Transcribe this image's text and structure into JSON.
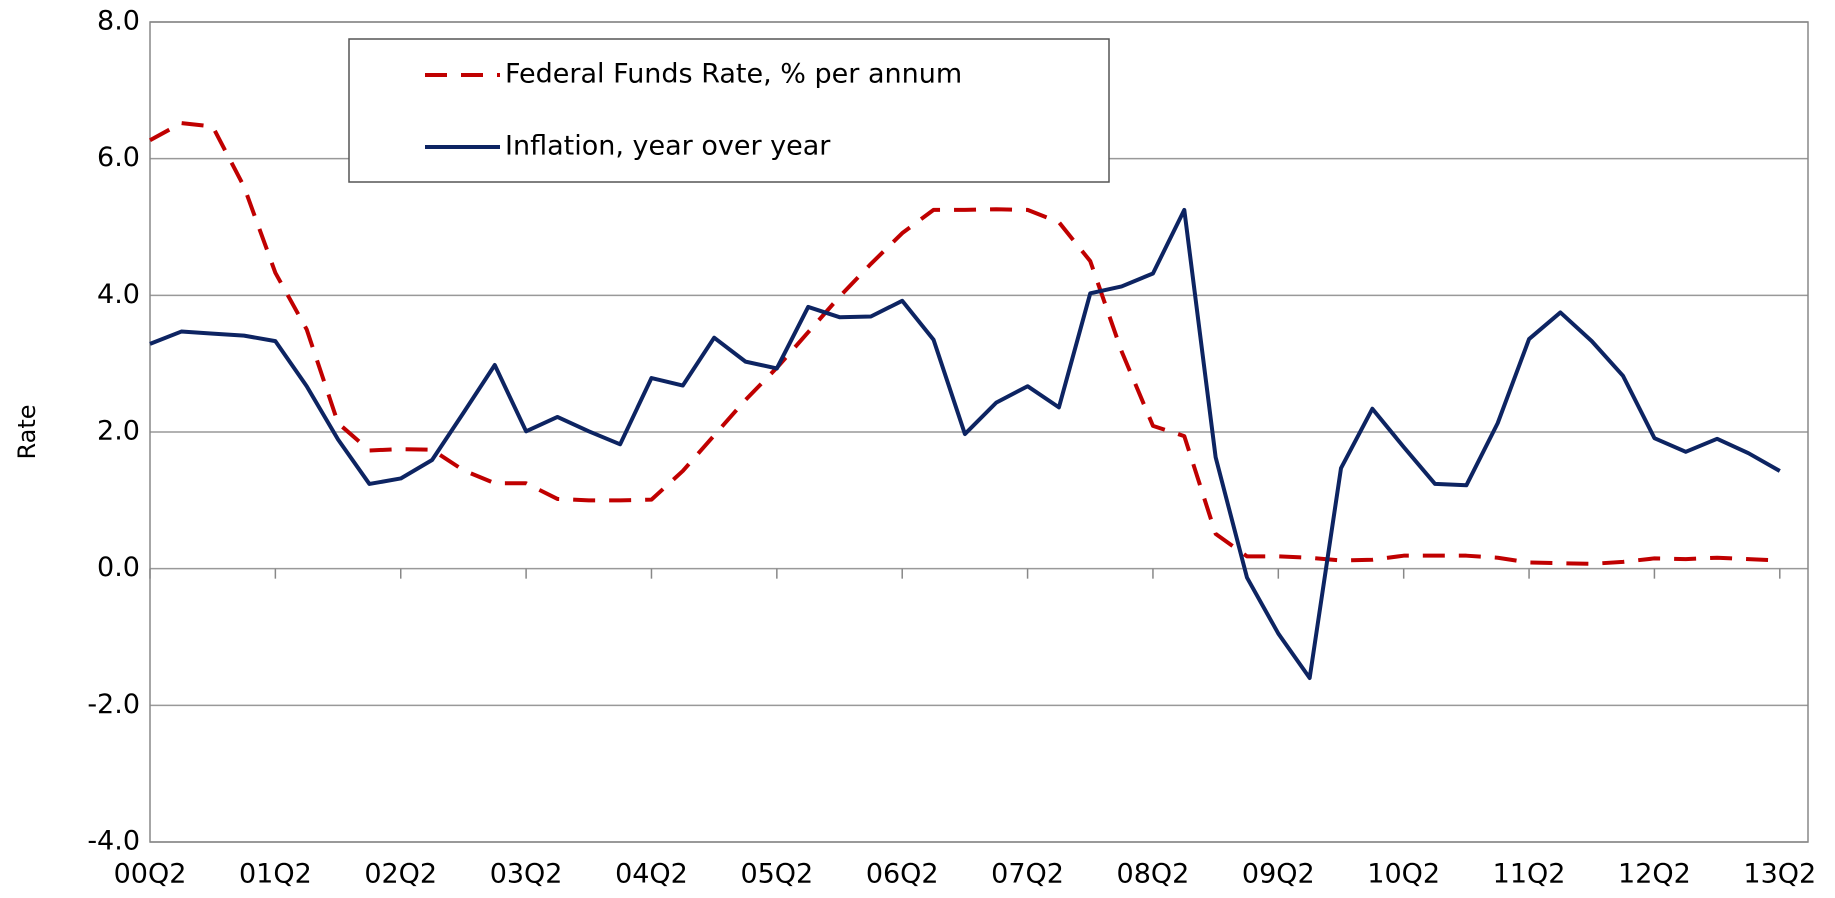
{
  "chart_data": {
    "type": "line",
    "y_label": "Rate",
    "categories": [
      "00Q2",
      null,
      null,
      null,
      "01Q2",
      null,
      null,
      null,
      "02Q2",
      null,
      null,
      null,
      "03Q2",
      null,
      null,
      null,
      "04Q2",
      null,
      null,
      null,
      "05Q2",
      null,
      null,
      null,
      "06Q2",
      null,
      null,
      null,
      "07Q2",
      null,
      null,
      null,
      "08Q2",
      null,
      null,
      null,
      "09Q2",
      null,
      null,
      null,
      "10Q2",
      null,
      null,
      null,
      "11Q2",
      null,
      null,
      null,
      "12Q2",
      null,
      null,
      null,
      "13Q2"
    ],
    "series": [
      {
        "name": "Federal Funds Rate, % per annum",
        "color": "#c00000",
        "dash": true,
        "values": [
          6.27,
          6.52,
          6.47,
          5.59,
          4.33,
          3.5,
          2.13,
          1.73,
          1.75,
          1.74,
          1.44,
          1.25,
          1.25,
          1.02,
          1.0,
          1.0,
          1.01,
          1.43,
          1.95,
          2.47,
          2.94,
          3.46,
          3.98,
          4.46,
          4.91,
          5.25,
          5.25,
          5.26,
          5.25,
          5.07,
          4.5,
          3.18,
          2.09,
          1.94,
          0.51,
          0.18,
          0.18,
          0.16,
          0.12,
          0.13,
          0.19,
          0.19,
          0.19,
          0.16,
          0.09,
          0.08,
          0.07,
          0.1,
          0.15,
          0.14,
          0.16,
          0.14,
          0.12
        ]
      },
      {
        "name": "Inflation, year over year",
        "color": "#0d2462",
        "dash": false,
        "values": [
          3.29,
          3.47,
          3.44,
          3.41,
          3.33,
          2.67,
          1.89,
          1.24,
          1.32,
          1.59,
          2.28,
          2.98,
          2.01,
          2.22,
          2.01,
          1.82,
          2.79,
          2.68,
          3.38,
          3.03,
          2.93,
          3.83,
          3.68,
          3.69,
          3.92,
          3.35,
          1.97,
          2.43,
          2.67,
          2.36,
          4.03,
          4.13,
          4.32,
          5.25,
          1.63,
          -0.13,
          -0.95,
          -1.6,
          1.47,
          2.34,
          1.78,
          1.24,
          1.22,
          2.13,
          3.36,
          3.75,
          3.33,
          2.82,
          1.91,
          1.71,
          1.9,
          1.69,
          1.43
        ]
      }
    ],
    "ylim": [
      -4,
      8
    ],
    "yticks": [
      {
        "value": -4,
        "label": "-4.0"
      },
      {
        "value": -2,
        "label": "-2.0"
      },
      {
        "value": 0,
        "label": "0.0"
      },
      {
        "value": 2,
        "label": "2.0"
      },
      {
        "value": 4,
        "label": "4.0"
      },
      {
        "value": 6,
        "label": "6.0"
      },
      {
        "value": 8,
        "label": "8.0"
      }
    ],
    "grid": true,
    "legend": "top-left"
  }
}
